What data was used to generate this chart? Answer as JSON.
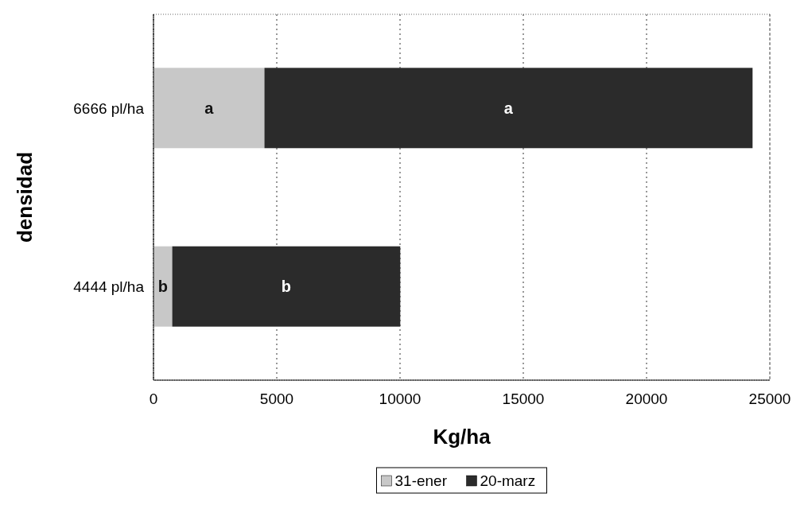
{
  "chart_data": {
    "type": "bar",
    "orientation": "horizontal",
    "stacked": true,
    "xlabel": "Kg/ha",
    "ylabel": "densidad",
    "categories": [
      "6666 pl/ha",
      "4444 pl/ha"
    ],
    "series": [
      {
        "name": "31-ener",
        "color": "#c8c8c8",
        "values": [
          4500,
          760
        ],
        "value_labels": [
          "a",
          "b"
        ]
      },
      {
        "name": "20-marz",
        "color": "#2b2b2b",
        "values": [
          19800,
          9250
        ],
        "value_labels": [
          "a",
          "b"
        ]
      }
    ],
    "xlim": [
      0,
      25000
    ],
    "xticks": [
      0,
      5000,
      10000,
      15000,
      20000,
      25000
    ],
    "grid": "x",
    "legend": "bottom"
  }
}
